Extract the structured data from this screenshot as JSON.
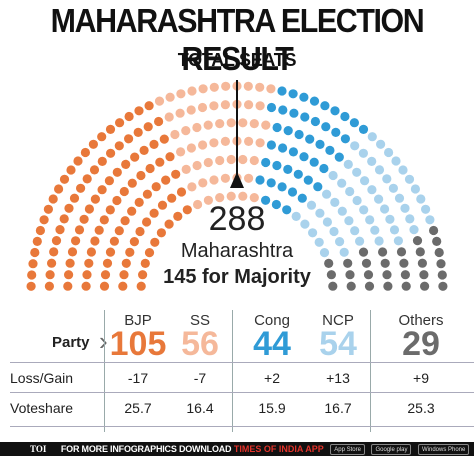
{
  "header": {
    "title": "MAHARASHTRA ELECTION RESULT",
    "subtitle": "TOTAL SEATS"
  },
  "center": {
    "total": "288",
    "state": "Maharashtra",
    "majority": "145 for Majority"
  },
  "table": {
    "party_label": "Party",
    "loss_gain_label": "Loss/Gain",
    "voteshare_label": "Voteshare"
  },
  "chart_data": {
    "type": "parliament",
    "total": 288,
    "majority": 145,
    "parties": [
      {
        "name": "BJP",
        "seats": 105,
        "seats_label": "105",
        "loss_gain": "-17",
        "voteshare": "25.7",
        "color": "#e8783a"
      },
      {
        "name": "SS",
        "seats": 56,
        "seats_label": "56",
        "loss_gain": "-7",
        "voteshare": "16.4",
        "color": "#f5b89a"
      },
      {
        "name": "Cong",
        "seats": 44,
        "seats_label": "44",
        "loss_gain": "+2",
        "voteshare": "15.9",
        "color": "#2f9bd6"
      },
      {
        "name": "NCP",
        "seats": 54,
        "seats_label": "54",
        "loss_gain": "+13",
        "voteshare": "16.7",
        "color": "#a9d2ec"
      },
      {
        "name": "Others",
        "seats": 29,
        "seats_label": "29",
        "loss_gain": "+9",
        "voteshare": "25.3",
        "color": "#6b6b6b"
      }
    ]
  },
  "footer": {
    "brand": "TOI",
    "message": "FOR MORE  INFOGRAPHICS DOWNLOAD",
    "message_red": "TIMES OF INDIA APP",
    "badges": [
      "App Store",
      "Google play",
      "Windows Phone"
    ]
  }
}
